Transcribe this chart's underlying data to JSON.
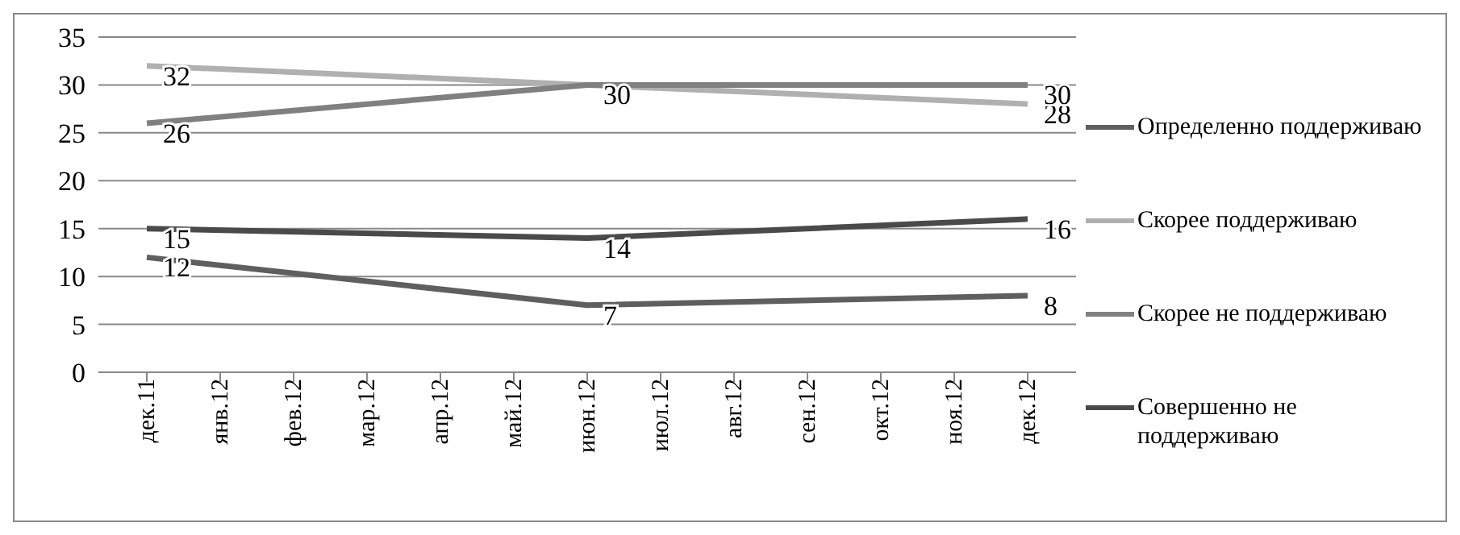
{
  "chart_data": {
    "type": "line",
    "categories": [
      "дек.11",
      "янв.12",
      "фев.12",
      "мар.12",
      "апр.12",
      "май.12",
      "июн.12",
      "июл.12",
      "авг.12",
      "сен.12",
      "окт.12",
      "ноя.12",
      "дек.12"
    ],
    "series": [
      {
        "name": "Определенно поддерживаю",
        "color": "#5f5f5f",
        "values": [
          12,
          null,
          null,
          null,
          null,
          null,
          7,
          null,
          null,
          null,
          null,
          null,
          8
        ],
        "value_labels": [
          "12",
          null,
          null,
          null,
          null,
          null,
          "7",
          null,
          null,
          null,
          null,
          null,
          "8"
        ]
      },
      {
        "name": "Скорее поддерживаю",
        "color": "#b0b0b0",
        "values": [
          32,
          null,
          null,
          null,
          null,
          null,
          30,
          null,
          null,
          null,
          null,
          null,
          28
        ],
        "value_labels": [
          "32",
          null,
          null,
          null,
          null,
          null,
          null,
          null,
          null,
          null,
          null,
          null,
          "28"
        ]
      },
      {
        "name": "Скорее не поддерживаю",
        "color": "#808080",
        "values": [
          26,
          null,
          null,
          null,
          null,
          null,
          30,
          null,
          null,
          null,
          null,
          null,
          30
        ],
        "value_labels": [
          "26",
          null,
          null,
          null,
          null,
          null,
          "30",
          null,
          null,
          null,
          null,
          null,
          "30"
        ]
      },
      {
        "name": "Совершенно не поддерживаю",
        "color": "#4a4a4a",
        "values": [
          15,
          null,
          null,
          null,
          null,
          null,
          14,
          null,
          null,
          null,
          null,
          null,
          16
        ],
        "value_labels": [
          "15",
          null,
          null,
          null,
          null,
          null,
          "14",
          null,
          null,
          null,
          null,
          null,
          "16"
        ]
      }
    ],
    "ylim": [
      0,
      35
    ],
    "yticks": [
      0,
      5,
      10,
      15,
      20,
      25,
      30,
      35
    ],
    "grid": "y",
    "legend": "right",
    "marker": "none",
    "line_style": "solid"
  }
}
